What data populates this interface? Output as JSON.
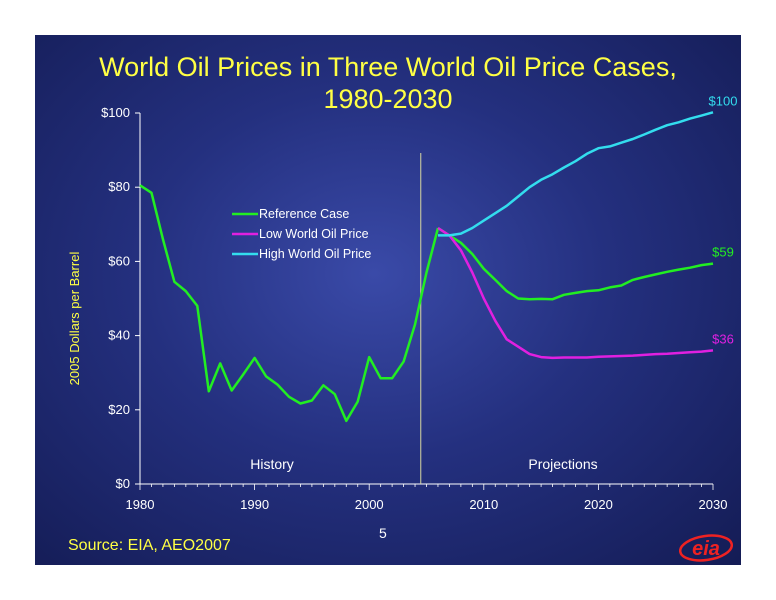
{
  "title_line1": "World Oil Prices in Three World Oil Price Cases,",
  "title_line2": "1980-2030",
  "source": "Source:  EIA, AEO2007",
  "page_number": "5",
  "logo_text": "eia",
  "chart_data": {
    "type": "line",
    "ylabel": "2005 Dollars per Barrel",
    "xlabel": "",
    "xlim": [
      1980,
      2030
    ],
    "ylim": [
      0,
      100
    ],
    "x_ticks": [
      "1980",
      "1990",
      "2000",
      "2010",
      "2020",
      "2030"
    ],
    "y_ticks": [
      "$0",
      "$20",
      "$40",
      "$60",
      "$80",
      "$100"
    ],
    "history_divider_year": 2004.5,
    "region_labels": {
      "history": "History",
      "projections": "Projections"
    },
    "legend_position": "upper-left",
    "history": {
      "color": "#22ee22",
      "x": [
        1980,
        1981,
        1982,
        1983,
        1984,
        1985,
        1986,
        1987,
        1988,
        1989,
        1990,
        1991,
        1992,
        1993,
        1994,
        1995,
        1996,
        1997,
        1998,
        1999,
        2000,
        2001,
        2002,
        2003,
        2004,
        2005,
        2006
      ],
      "values": [
        80.5,
        78.5,
        66,
        54.5,
        52,
        48,
        25,
        32.5,
        25.2,
        29.5,
        34,
        29,
        26.8,
        23.5,
        21.7,
        22.5,
        26.6,
        24.2,
        17,
        22.2,
        34.2,
        28.5,
        28.5,
        33,
        43,
        57,
        69
      ]
    },
    "series": [
      {
        "name": "Reference Case",
        "color": "#22ee22",
        "end_label": "$59",
        "x": [
          2006,
          2007,
          2008,
          2009,
          2010,
          2011,
          2012,
          2013,
          2014,
          2015,
          2016,
          2017,
          2018,
          2019,
          2020,
          2021,
          2022,
          2023,
          2024,
          2025,
          2026,
          2027,
          2028,
          2029,
          2030
        ],
        "values": [
          69,
          67,
          65,
          62,
          58,
          55,
          52,
          50,
          49.8,
          49.9,
          49.8,
          51,
          51.5,
          52,
          52.2,
          53,
          53.5,
          55,
          55.8,
          56.5,
          57.2,
          57.8,
          58.3,
          59,
          59.4
        ]
      },
      {
        "name": "Low World Oil Price",
        "color": "#e020e0",
        "end_label": "$36",
        "x": [
          2006,
          2007,
          2008,
          2009,
          2010,
          2011,
          2012,
          2013,
          2014,
          2015,
          2016,
          2017,
          2018,
          2019,
          2020,
          2021,
          2022,
          2023,
          2024,
          2025,
          2026,
          2027,
          2028,
          2029,
          2030
        ],
        "values": [
          69,
          67,
          63,
          57,
          50,
          44,
          39,
          37,
          35,
          34.2,
          34,
          34.1,
          34.1,
          34.1,
          34.3,
          34.4,
          34.5,
          34.6,
          34.8,
          35,
          35.1,
          35.3,
          35.5,
          35.7,
          36
        ]
      },
      {
        "name": "High World Oil Price",
        "color": "#33ddee",
        "end_label": "$100",
        "x": [
          2006,
          2007,
          2008,
          2009,
          2010,
          2011,
          2012,
          2013,
          2014,
          2015,
          2016,
          2017,
          2018,
          2019,
          2020,
          2021,
          2022,
          2023,
          2024,
          2025,
          2026,
          2027,
          2028,
          2029,
          2030
        ],
        "values": [
          67,
          67,
          67.5,
          69,
          71,
          73,
          75,
          77.5,
          80,
          82,
          83.5,
          85.3,
          87,
          89,
          90.5,
          91,
          92,
          93,
          94.2,
          95.5,
          96.7,
          97.5,
          98.5,
          99.3,
          100.2
        ]
      }
    ]
  }
}
